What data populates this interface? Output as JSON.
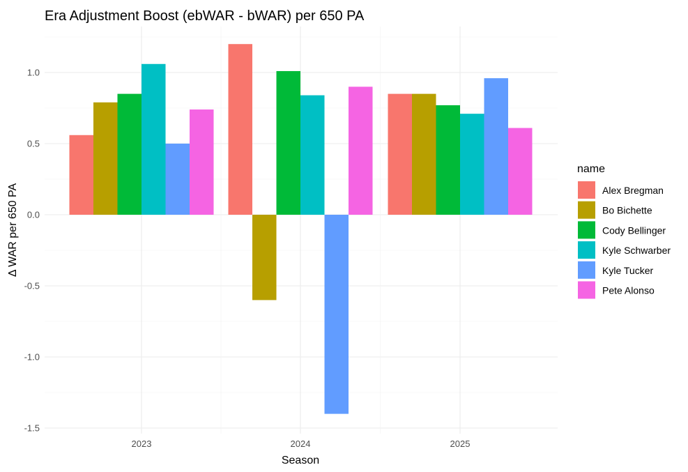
{
  "chart_data": {
    "type": "bar",
    "title": "Era Adjustment Boost (ebWAR - bWAR) per 650 PA",
    "xlabel": "Season",
    "ylabel": "Δ WAR per 650 PA",
    "categories": [
      "2023",
      "2024",
      "2025"
    ],
    "ylim": [
      -1.55,
      1.32
    ],
    "yticks": [
      -1.5,
      -1.0,
      -0.5,
      0.0,
      0.5,
      1.0
    ],
    "ytick_labels": [
      "-1.5",
      "-1.0",
      "-0.5",
      "0.0",
      "0.5",
      "1.0"
    ],
    "grid": true,
    "legend": {
      "title": "name",
      "position": "right"
    },
    "series": [
      {
        "name": "Alex Bregman",
        "color": "#F8766D",
        "values": [
          0.56,
          1.2,
          0.85
        ]
      },
      {
        "name": "Bo Bichette",
        "color": "#B79F00",
        "values": [
          0.79,
          -0.6,
          0.85
        ]
      },
      {
        "name": "Cody Bellinger",
        "color": "#00BA38",
        "values": [
          0.85,
          1.01,
          0.77
        ]
      },
      {
        "name": "Kyle Schwarber",
        "color": "#00BFC4",
        "values": [
          1.06,
          0.84,
          0.71
        ]
      },
      {
        "name": "Kyle Tucker",
        "color": "#619CFF",
        "values": [
          0.5,
          -1.4,
          0.96
        ]
      },
      {
        "name": "Pete Alonso",
        "color": "#F564E3",
        "values": [
          0.74,
          0.9,
          0.61
        ]
      }
    ]
  }
}
